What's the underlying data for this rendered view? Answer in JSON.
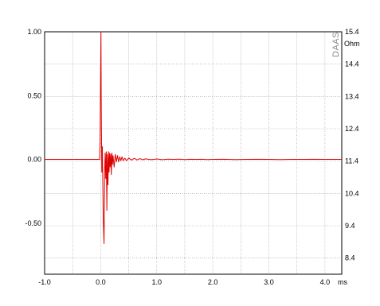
{
  "chart_data": {
    "type": "line",
    "title": "",
    "xlabel": "ms",
    "ylabel": "",
    "y2label": "Ohm",
    "watermark": "DAAS",
    "xlim": [
      -1.0,
      4.3
    ],
    "ylim": [
      -0.9,
      1.0
    ],
    "y2lim": [
      8.4,
      15.4
    ],
    "x_ticks": [
      {
        "value": -1.0,
        "label": "-1.0"
      },
      {
        "value": 0.0,
        "label": "0.0"
      },
      {
        "value": 1.0,
        "label": "1.0"
      },
      {
        "value": 2.0,
        "label": "2.0"
      },
      {
        "value": 3.0,
        "label": "3.0"
      },
      {
        "value": 4.0,
        "label": "4.0"
      }
    ],
    "y_ticks": [
      {
        "value": 1.0,
        "label": "1.00"
      },
      {
        "value": 0.5,
        "label": "0.50"
      },
      {
        "value": 0.0,
        "label": "0.00"
      },
      {
        "value": -0.5,
        "label": "-0.50"
      }
    ],
    "y2_ticks": [
      {
        "value": 15.4,
        "label": "15.4"
      },
      {
        "value": 14.4,
        "label": "14.4"
      },
      {
        "value": 13.4,
        "label": "13.4"
      },
      {
        "value": 12.4,
        "label": "12.4"
      },
      {
        "value": 11.4,
        "label": "11.4"
      },
      {
        "value": 10.4,
        "label": "10.4"
      },
      {
        "value": 9.4,
        "label": "9.4"
      },
      {
        "value": 8.4,
        "label": "8.4"
      }
    ],
    "grid": true,
    "series": [
      {
        "color": "#dd0000",
        "x": [
          -1.0,
          -0.5,
          -0.02,
          -0.01,
          0.0,
          0.005,
          0.01,
          0.02,
          0.03,
          0.045,
          0.06,
          0.07,
          0.08,
          0.09,
          0.1,
          0.11,
          0.12,
          0.13,
          0.14,
          0.15,
          0.16,
          0.17,
          0.18,
          0.19,
          0.2,
          0.21,
          0.22,
          0.24,
          0.26,
          0.28,
          0.3,
          0.32,
          0.34,
          0.36,
          0.38,
          0.4,
          0.43,
          0.46,
          0.5,
          0.55,
          0.6,
          0.65,
          0.7,
          0.75,
          0.8,
          0.9,
          1.0,
          1.1,
          1.2,
          1.3,
          1.4,
          1.5,
          1.6,
          1.7,
          1.8,
          1.9,
          2.0,
          2.2,
          2.4,
          2.6,
          2.8,
          3.0,
          3.2,
          3.4,
          3.6,
          3.8,
          4.0,
          4.2,
          4.3
        ],
        "y": [
          0.0,
          0.0,
          0.0,
          0.15,
          0.75,
          1.0,
          0.45,
          -0.1,
          0.1,
          -0.45,
          -0.66,
          -0.1,
          0.05,
          -0.15,
          0.06,
          -0.4,
          0.04,
          -0.2,
          0.06,
          -0.1,
          0.05,
          -0.06,
          0.04,
          -0.12,
          0.05,
          -0.04,
          0.03,
          -0.06,
          0.04,
          -0.02,
          0.03,
          -0.02,
          0.02,
          -0.01,
          0.02,
          -0.01,
          0.01,
          -0.01,
          0.01,
          -0.005,
          0.008,
          -0.004,
          0.006,
          -0.003,
          0.004,
          -0.002,
          0.003,
          -0.002,
          0.002,
          0.0,
          0.002,
          -0.001,
          0.001,
          0.0,
          0.001,
          -0.001,
          0.0,
          0.001,
          -0.001,
          0.0,
          0.001,
          0.0,
          -0.001,
          0.0,
          0.0,
          0.001,
          0.0,
          0.0,
          0.0
        ]
      }
    ]
  }
}
